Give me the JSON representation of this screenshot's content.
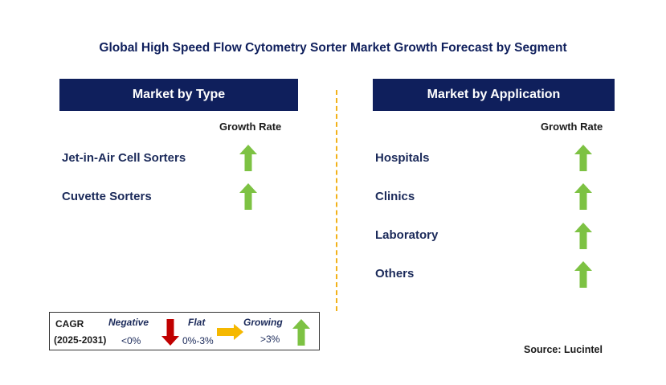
{
  "title": "Global High Speed Flow Cytometry Sorter Market Growth Forecast by Segment",
  "type_panel": {
    "header": "Market by Type",
    "growth_rate_label": "Growth Rate",
    "items": [
      {
        "label": "Jet-in-Air Cell Sorters",
        "trend": "growing"
      },
      {
        "label": "Cuvette Sorters",
        "trend": "growing"
      }
    ]
  },
  "application_panel": {
    "header": "Market by Application",
    "growth_rate_label": "Growth Rate",
    "items": [
      {
        "label": "Hospitals",
        "trend": "growing"
      },
      {
        "label": "Clinics",
        "trend": "growing"
      },
      {
        "label": "Laboratory",
        "trend": "growing"
      },
      {
        "label": "Others",
        "trend": "growing"
      }
    ]
  },
  "legend": {
    "cagr_label": "CAGR",
    "period": "(2025-2031)",
    "negative_label": "Negative",
    "negative_range": "<0%",
    "flat_label": "Flat",
    "flat_range": "0%-3%",
    "growing_label": "Growing",
    "growing_range": ">3%"
  },
  "source": "Source: Lucintel",
  "colors": {
    "header_bg": "#0f1f5c",
    "growing_arrow": "#7dc243",
    "negative_arrow": "#c00000",
    "flat_arrow": "#f5b800",
    "divider": "#f2b21a"
  }
}
